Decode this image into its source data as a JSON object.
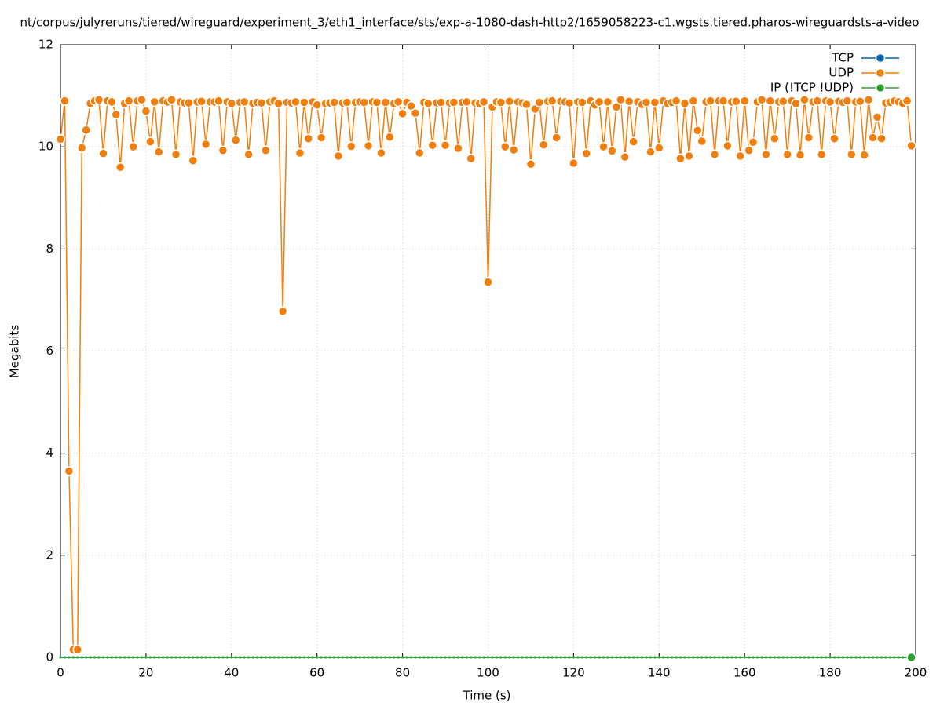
{
  "chart_data": {
    "type": "line",
    "title": "nt/corpus/julyreruns/tiered/wireguard/experiment_3/eth1_interface/sts/exp-a-1080-dash-http2/1659058223-c1.wgsts.tiered.pharos-wireguardsts-a-video",
    "x_label": "Time (s)",
    "y_label": "Megabits",
    "xlim": [
      0,
      200
    ],
    "ylim": [
      0,
      12
    ],
    "xticks": [
      0,
      20,
      40,
      60,
      80,
      100,
      120,
      140,
      160,
      180,
      200
    ],
    "yticks": [
      0,
      2,
      4,
      6,
      8,
      10,
      12
    ],
    "grid": true,
    "legend": "top-right",
    "x": [
      0,
      1,
      2,
      3,
      4,
      5,
      6,
      7,
      8,
      9,
      10,
      11,
      12,
      13,
      14,
      15,
      16,
      17,
      18,
      19,
      20,
      21,
      22,
      23,
      24,
      25,
      26,
      27,
      28,
      29,
      30,
      31,
      32,
      33,
      34,
      35,
      36,
      37,
      38,
      39,
      40,
      41,
      42,
      43,
      44,
      45,
      46,
      47,
      48,
      49,
      50,
      51,
      52,
      53,
      54,
      55,
      56,
      57,
      58,
      59,
      60,
      61,
      62,
      63,
      64,
      65,
      66,
      67,
      68,
      69,
      70,
      71,
      72,
      73,
      74,
      75,
      76,
      77,
      78,
      79,
      80,
      81,
      82,
      83,
      84,
      85,
      86,
      87,
      88,
      89,
      90,
      91,
      92,
      93,
      94,
      95,
      96,
      97,
      98,
      99,
      100,
      101,
      102,
      103,
      104,
      105,
      106,
      107,
      108,
      109,
      110,
      111,
      112,
      113,
      114,
      115,
      116,
      117,
      118,
      119,
      120,
      121,
      122,
      123,
      124,
      125,
      126,
      127,
      128,
      129,
      130,
      131,
      132,
      133,
      134,
      135,
      136,
      137,
      138,
      139,
      140,
      141,
      142,
      143,
      144,
      145,
      146,
      147,
      148,
      149,
      150,
      151,
      152,
      153,
      154,
      155,
      156,
      157,
      158,
      159,
      160,
      161,
      162,
      163,
      164,
      165,
      166,
      167,
      168,
      169,
      170,
      171,
      172,
      173,
      174,
      175,
      176,
      177,
      178,
      179,
      180,
      181,
      182,
      183,
      184,
      185,
      186,
      187,
      188,
      189,
      190,
      191,
      192,
      193,
      194,
      195,
      196,
      197,
      198,
      199
    ],
    "series": [
      {
        "name": "TCP",
        "color": "#0060ad",
        "values": [
          0,
          0,
          0,
          0,
          0,
          0,
          0,
          0,
          0,
          0,
          0,
          0,
          0,
          0,
          0,
          0,
          0,
          0,
          0,
          0,
          0,
          0,
          0,
          0,
          0,
          0,
          0,
          0,
          0,
          0,
          0,
          0,
          0,
          0,
          0,
          0,
          0,
          0,
          0,
          0,
          0,
          0,
          0,
          0,
          0,
          0,
          0,
          0,
          0,
          0,
          0,
          0,
          0,
          0,
          0,
          0,
          0,
          0,
          0,
          0,
          0,
          0,
          0,
          0,
          0,
          0,
          0,
          0,
          0,
          0,
          0,
          0,
          0,
          0,
          0,
          0,
          0,
          0,
          0,
          0,
          0,
          0,
          0,
          0,
          0,
          0,
          0,
          0,
          0,
          0,
          0,
          0,
          0,
          0,
          0,
          0,
          0,
          0,
          0,
          0,
          0,
          0,
          0,
          0,
          0,
          0,
          0,
          0,
          0,
          0,
          0,
          0,
          0,
          0,
          0,
          0,
          0,
          0,
          0,
          0,
          0,
          0,
          0,
          0,
          0,
          0,
          0,
          0,
          0,
          0,
          0,
          0,
          0,
          0,
          0,
          0,
          0,
          0,
          0,
          0,
          0,
          0,
          0,
          0,
          0,
          0,
          0,
          0,
          0,
          0,
          0,
          0,
          0,
          0,
          0,
          0,
          0,
          0,
          0,
          0,
          0,
          0,
          0,
          0,
          0,
          0,
          0,
          0,
          0,
          0,
          0,
          0,
          0,
          0,
          0,
          0,
          0,
          0,
          0,
          0,
          0,
          0,
          0,
          0,
          0,
          0,
          0,
          0,
          0,
          0,
          0,
          0,
          0,
          0,
          0,
          0,
          0,
          0,
          0,
          0
        ]
      },
      {
        "name": "UDP",
        "color": "#f07f0e",
        "values": [
          10.15,
          10.9,
          3.65,
          0.15,
          0.15,
          9.98,
          10.33,
          10.85,
          10.9,
          10.92,
          9.87,
          10.9,
          10.88,
          10.63,
          9.6,
          10.85,
          10.9,
          10.0,
          10.9,
          10.92,
          10.7,
          10.1,
          10.88,
          9.9,
          10.9,
          10.88,
          10.92,
          9.85,
          10.88,
          10.86,
          10.86,
          9.73,
          10.88,
          10.89,
          10.05,
          10.88,
          10.88,
          10.9,
          9.93,
          10.88,
          10.85,
          10.13,
          10.87,
          10.88,
          9.85,
          10.85,
          10.87,
          10.86,
          9.93,
          10.88,
          10.9,
          10.85,
          6.78,
          10.87,
          10.86,
          10.88,
          9.88,
          10.87,
          10.16,
          10.88,
          10.82,
          10.18,
          10.85,
          10.86,
          10.87,
          9.82,
          10.86,
          10.87,
          10.01,
          10.87,
          10.88,
          10.87,
          10.02,
          10.88,
          10.87,
          9.88,
          10.87,
          10.19,
          10.85,
          10.88,
          10.65,
          10.87,
          10.8,
          10.66,
          9.88,
          10.87,
          10.85,
          10.03,
          10.86,
          10.87,
          10.03,
          10.86,
          10.87,
          9.97,
          10.87,
          10.88,
          9.77,
          10.86,
          10.85,
          10.88,
          7.35,
          10.78,
          10.88,
          10.87,
          10.0,
          10.89,
          9.94,
          10.88,
          10.86,
          10.83,
          9.66,
          10.74,
          10.87,
          10.04,
          10.89,
          10.9,
          10.18,
          10.89,
          10.88,
          10.86,
          9.68,
          10.88,
          10.87,
          9.87,
          10.9,
          10.82,
          10.88,
          10.0,
          10.88,
          9.92,
          10.78,
          10.92,
          9.8,
          10.89,
          10.1,
          10.88,
          10.83,
          10.87,
          9.9,
          10.87,
          9.98,
          10.9,
          10.85,
          10.87,
          10.9,
          9.77,
          10.85,
          9.82,
          10.9,
          10.32,
          10.11,
          10.88,
          10.9,
          9.85,
          10.9,
          10.9,
          10.02,
          10.88,
          10.89,
          9.82,
          10.9,
          9.93,
          10.09,
          10.88,
          10.92,
          9.85,
          10.9,
          10.16,
          10.88,
          10.89,
          9.85,
          10.9,
          10.85,
          9.84,
          10.92,
          10.18,
          10.88,
          10.9,
          9.85,
          10.9,
          10.88,
          10.16,
          10.89,
          10.87,
          10.9,
          9.85,
          10.88,
          10.89,
          9.84,
          10.92,
          10.18,
          10.58,
          10.16,
          10.86,
          10.87,
          10.9,
          10.88,
          10.85,
          10.9,
          10.02
        ]
      },
      {
        "name": "IP (!TCP  !UDP)",
        "color": "#2ca02c",
        "values": [
          0,
          0,
          0,
          0,
          0,
          0,
          0,
          0,
          0,
          0,
          0,
          0,
          0,
          0,
          0,
          0,
          0,
          0,
          0,
          0,
          0,
          0,
          0,
          0,
          0,
          0,
          0,
          0,
          0,
          0,
          0,
          0,
          0,
          0,
          0,
          0,
          0,
          0,
          0,
          0,
          0,
          0,
          0,
          0,
          0,
          0,
          0,
          0,
          0,
          0,
          0,
          0,
          0,
          0,
          0,
          0,
          0,
          0,
          0,
          0,
          0,
          0,
          0,
          0,
          0,
          0,
          0,
          0,
          0,
          0,
          0,
          0,
          0,
          0,
          0,
          0,
          0,
          0,
          0,
          0,
          0,
          0,
          0,
          0,
          0,
          0,
          0,
          0,
          0,
          0,
          0,
          0,
          0,
          0,
          0,
          0,
          0,
          0,
          0,
          0,
          0,
          0,
          0,
          0,
          0,
          0,
          0,
          0,
          0,
          0,
          0,
          0,
          0,
          0,
          0,
          0,
          0,
          0,
          0,
          0,
          0,
          0,
          0,
          0,
          0,
          0,
          0,
          0,
          0,
          0,
          0,
          0,
          0,
          0,
          0,
          0,
          0,
          0,
          0,
          0,
          0,
          0,
          0,
          0,
          0,
          0,
          0,
          0,
          0,
          0,
          0,
          0,
          0,
          0,
          0,
          0,
          0,
          0,
          0,
          0,
          0,
          0,
          0,
          0,
          0,
          0,
          0,
          0,
          0,
          0,
          0,
          0,
          0,
          0,
          0,
          0,
          0,
          0,
          0,
          0,
          0,
          0,
          0,
          0,
          0,
          0,
          0,
          0,
          0,
          0,
          0,
          0,
          0,
          0,
          0,
          0,
          0,
          0,
          0,
          0
        ]
      }
    ]
  }
}
